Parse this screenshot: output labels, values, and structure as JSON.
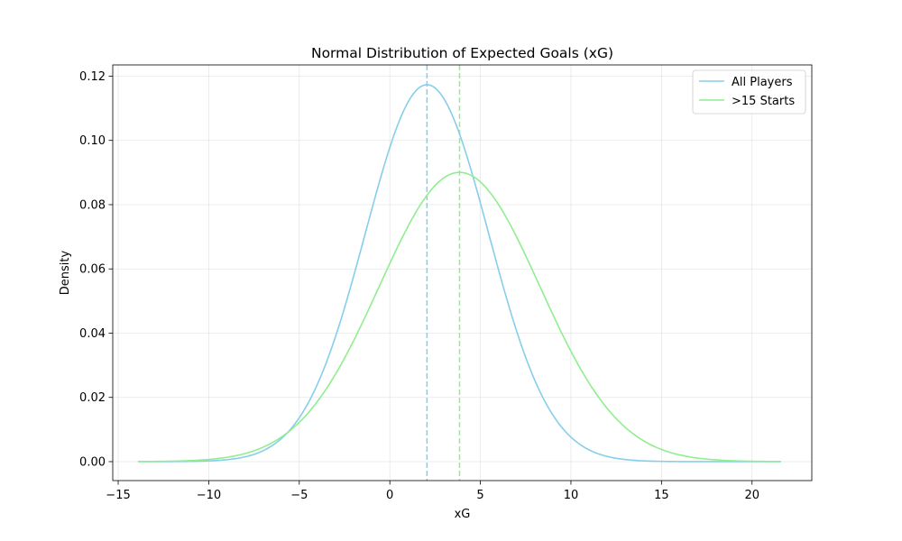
{
  "chart_data": {
    "type": "line",
    "title": "Normal Distribution of Expected Goals (xG)",
    "xlabel": "xG",
    "ylabel": "Density",
    "xlim": [
      -15.3,
      23.3
    ],
    "ylim": [
      -0.0059,
      0.1235
    ],
    "xticks": [
      -15,
      -10,
      -5,
      0,
      5,
      10,
      15,
      20
    ],
    "xtick_labels": [
      "−15",
      "−10",
      "−5",
      "0",
      "5",
      "10",
      "15",
      "20"
    ],
    "yticks": [
      0.0,
      0.02,
      0.04,
      0.06,
      0.08,
      0.1,
      0.12
    ],
    "ytick_labels": [
      "0.00",
      "0.02",
      "0.04",
      "0.06",
      "0.08",
      "0.10",
      "0.12"
    ],
    "grid": true,
    "legend_position": "top-right",
    "x_range": [
      -13.9,
      21.6
    ],
    "series": [
      {
        "name": "All Players",
        "color": "#87ceeb",
        "mean": 2.05,
        "std": 3.4,
        "peak_density": 0.1173
      },
      {
        "name": ">15 Starts",
        "color": "#90ee90",
        "mean": 3.85,
        "std": 4.43,
        "peak_density": 0.09
      }
    ],
    "vlines": [
      {
        "x": 2.05,
        "color": "#87ceeb",
        "style": "dashed"
      },
      {
        "x": 3.85,
        "color": "#90ee90",
        "style": "dashed"
      }
    ]
  }
}
